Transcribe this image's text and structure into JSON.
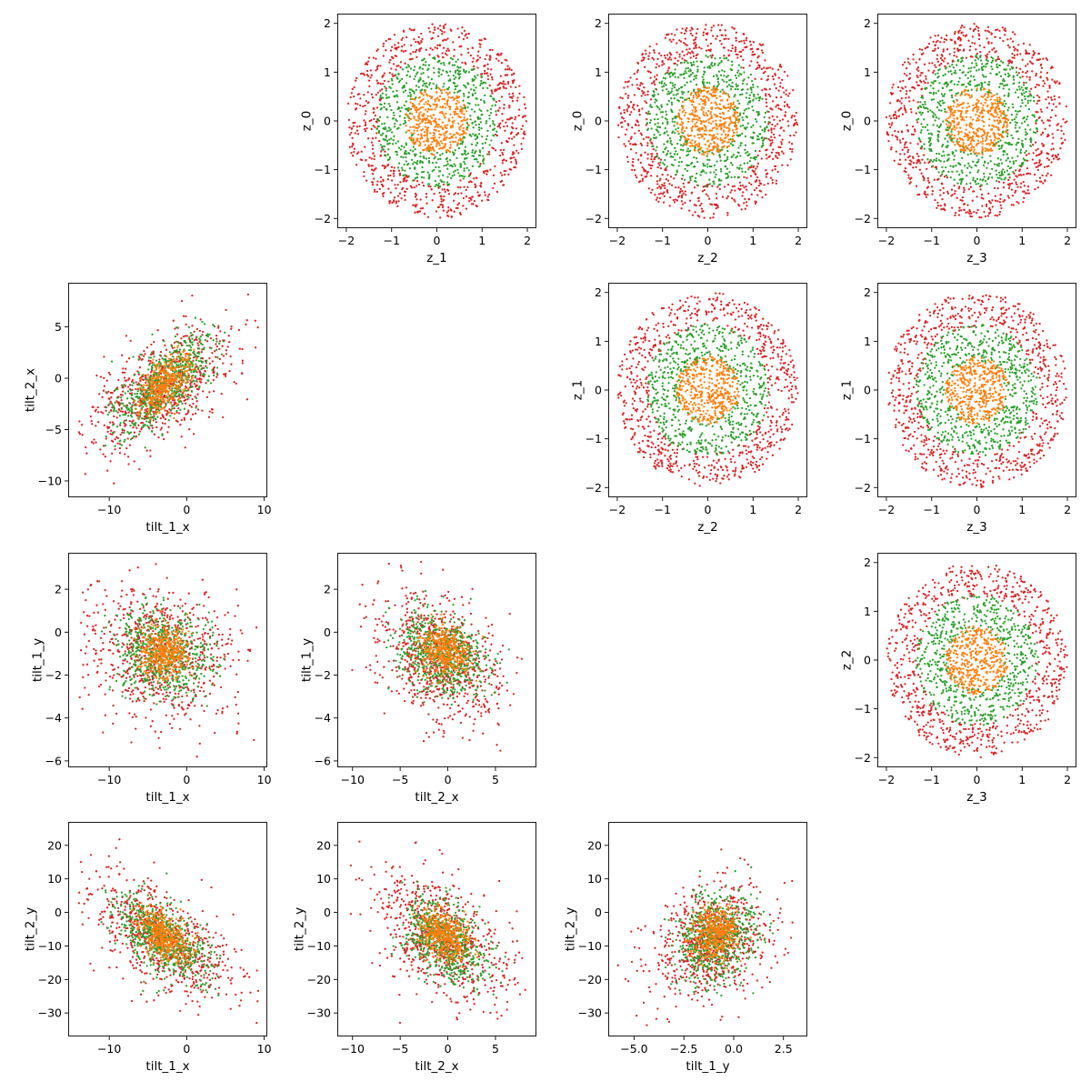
{
  "chart_data": {
    "type": "scatter",
    "layout": "lower and upper triangle scatter-plot matrix (4x4 grid, diagonal empty)",
    "series_colors": {
      "outer": "#d62728",
      "middle": "#2ca02c",
      "inner": "#ff7f0e"
    },
    "panels": [
      {
        "id": "z1-vs-z0",
        "row": 0,
        "col": 1,
        "xlabel": "z_1",
        "ylabel": "z_0",
        "xlim": [
          -2.2,
          2.2
        ],
        "ylim": [
          -2.2,
          2.2
        ],
        "xticks": [
          -2,
          -1,
          0,
          1,
          2
        ],
        "yticks": [
          -2,
          -1,
          0,
          1,
          2
        ],
        "xtick_labels": [
          "−2",
          "−1",
          "0",
          "1",
          "2"
        ],
        "ytick_labels": [
          "−2",
          "−1",
          "0",
          "1",
          "2"
        ],
        "distribution": "annulus",
        "rings": [
          {
            "series": "outer",
            "rmin": 1.3,
            "rmax": 2.0,
            "count": 750
          },
          {
            "series": "middle",
            "rmin": 0.6,
            "rmax": 1.35,
            "count": 620
          },
          {
            "series": "inner",
            "rmin": 0.0,
            "rmax": 0.7,
            "count": 420
          }
        ]
      },
      {
        "id": "z2-vs-z0",
        "row": 0,
        "col": 2,
        "xlabel": "z_2",
        "ylabel": "z_0",
        "xlim": [
          -2.2,
          2.2
        ],
        "ylim": [
          -2.2,
          2.2
        ],
        "xticks": [
          -2,
          -1,
          0,
          1,
          2
        ],
        "yticks": [
          -2,
          -1,
          0,
          1,
          2
        ],
        "xtick_labels": [
          "−2",
          "−1",
          "0",
          "1",
          "2"
        ],
        "ytick_labels": [
          "−2",
          "−1",
          "0",
          "1",
          "2"
        ],
        "distribution": "annulus",
        "rings": [
          {
            "series": "outer",
            "rmin": 1.3,
            "rmax": 2.0,
            "count": 750
          },
          {
            "series": "middle",
            "rmin": 0.6,
            "rmax": 1.35,
            "count": 620
          },
          {
            "series": "inner",
            "rmin": 0.0,
            "rmax": 0.7,
            "count": 420
          }
        ]
      },
      {
        "id": "z3-vs-z0",
        "row": 0,
        "col": 3,
        "xlabel": "z_3",
        "ylabel": "z_0",
        "xlim": [
          -2.2,
          2.2
        ],
        "ylim": [
          -2.2,
          2.2
        ],
        "xticks": [
          -2,
          -1,
          0,
          1,
          2
        ],
        "yticks": [
          -2,
          -1,
          0,
          1,
          2
        ],
        "xtick_labels": [
          "−2",
          "−1",
          "0",
          "1",
          "2"
        ],
        "ytick_labels": [
          "−2",
          "−1",
          "0",
          "1",
          "2"
        ],
        "distribution": "annulus",
        "rings": [
          {
            "series": "outer",
            "rmin": 1.3,
            "rmax": 2.0,
            "count": 750
          },
          {
            "series": "middle",
            "rmin": 0.6,
            "rmax": 1.35,
            "count": 620
          },
          {
            "series": "inner",
            "rmin": 0.0,
            "rmax": 0.7,
            "count": 420
          }
        ]
      },
      {
        "id": "tilt1x-vs-tilt2x",
        "row": 1,
        "col": 0,
        "xlabel": "tilt_1_x",
        "ylabel": "tilt_2_x",
        "xlim": [
          -15.3,
          10.4
        ],
        "ylim": [
          -11.6,
          9.3
        ],
        "xticks": [
          -10,
          0,
          10
        ],
        "yticks": [
          -10,
          -5,
          0,
          5
        ],
        "xtick_labels": [
          "−10",
          "0",
          "10"
        ],
        "ytick_labels": [
          "−10",
          "−5",
          "0",
          "5"
        ],
        "distribution": "gaussian",
        "clouds": [
          {
            "series": "outer",
            "mx": -3.5,
            "my": -1.0,
            "sx": 4.6,
            "sy": 3.2,
            "rho": 0.62,
            "count": 750,
            "xlim": [
              -14,
              9.5
            ],
            "ylim": [
              -10.5,
              8.5
            ]
          },
          {
            "series": "middle",
            "mx": -3.0,
            "my": -0.6,
            "sx": 3.2,
            "sy": 2.4,
            "rho": 0.65,
            "count": 620,
            "xlim": [
              -11,
              5
            ],
            "ylim": [
              -7,
              6.5
            ]
          },
          {
            "series": "inner",
            "mx": -2.8,
            "my": -0.5,
            "sx": 1.8,
            "sy": 1.5,
            "rho": 0.6,
            "count": 420,
            "xlim": [
              -7,
              1.5
            ],
            "ylim": [
              -4,
              4
            ]
          }
        ]
      },
      {
        "id": "z2-vs-z1",
        "row": 1,
        "col": 2,
        "xlabel": "z_2",
        "ylabel": "z_1",
        "xlim": [
          -2.2,
          2.2
        ],
        "ylim": [
          -2.2,
          2.2
        ],
        "xticks": [
          -2,
          -1,
          0,
          1,
          2
        ],
        "yticks": [
          -2,
          -1,
          0,
          1,
          2
        ],
        "xtick_labels": [
          "−2",
          "−1",
          "0",
          "1",
          "2"
        ],
        "ytick_labels": [
          "−2",
          "−1",
          "0",
          "1",
          "2"
        ],
        "distribution": "annulus",
        "rings": [
          {
            "series": "outer",
            "rmin": 1.3,
            "rmax": 2.0,
            "count": 750
          },
          {
            "series": "middle",
            "rmin": 0.6,
            "rmax": 1.35,
            "count": 620
          },
          {
            "series": "inner",
            "rmin": 0.0,
            "rmax": 0.7,
            "count": 420
          }
        ]
      },
      {
        "id": "z3-vs-z1",
        "row": 1,
        "col": 3,
        "xlabel": "z_3",
        "ylabel": "z_1",
        "xlim": [
          -2.2,
          2.2
        ],
        "ylim": [
          -2.2,
          2.2
        ],
        "xticks": [
          -2,
          -1,
          0,
          1,
          2
        ],
        "yticks": [
          -2,
          -1,
          0,
          1,
          2
        ],
        "xtick_labels": [
          "−2",
          "−1",
          "0",
          "1",
          "2"
        ],
        "ytick_labels": [
          "−2",
          "−1",
          "0",
          "1",
          "2"
        ],
        "distribution": "annulus",
        "rings": [
          {
            "series": "outer",
            "rmin": 1.3,
            "rmax": 2.0,
            "count": 750
          },
          {
            "series": "middle",
            "rmin": 0.6,
            "rmax": 1.35,
            "count": 620
          },
          {
            "series": "inner",
            "rmin": 0.0,
            "rmax": 0.7,
            "count": 420
          }
        ]
      },
      {
        "id": "tilt1x-vs-tilt1y",
        "row": 2,
        "col": 0,
        "xlabel": "tilt_1_x",
        "ylabel": "tilt_1_y",
        "xlim": [
          -15.3,
          10.4
        ],
        "ylim": [
          -6.3,
          3.7
        ],
        "xticks": [
          -10,
          0,
          10
        ],
        "yticks": [
          -6,
          -4,
          -2,
          0,
          2
        ],
        "xtick_labels": [
          "−10",
          "0",
          "10"
        ],
        "ytick_labels": [
          "−6",
          "−4",
          "−2",
          "0",
          "2"
        ],
        "distribution": "gaussian",
        "clouds": [
          {
            "series": "outer",
            "mx": -3.5,
            "my": -1.0,
            "sx": 5.0,
            "sy": 1.6,
            "rho": -0.15,
            "count": 750,
            "xlim": [
              -14,
              9.5
            ],
            "ylim": [
              -5.9,
              3.3
            ]
          },
          {
            "series": "middle",
            "mx": -3.2,
            "my": -1.0,
            "sx": 3.2,
            "sy": 1.0,
            "rho": -0.1,
            "count": 620,
            "xlim": [
              -11,
              5
            ],
            "ylim": [
              -3.5,
              2
            ]
          },
          {
            "series": "inner",
            "mx": -3.0,
            "my": -0.9,
            "sx": 1.7,
            "sy": 0.6,
            "rho": 0.0,
            "count": 420,
            "xlim": [
              -7,
              1.5
            ],
            "ylim": [
              -2.5,
              1
            ]
          }
        ]
      },
      {
        "id": "tilt2x-vs-tilt1y",
        "row": 2,
        "col": 1,
        "xlabel": "tilt_2_x",
        "ylabel": "tilt_1_y",
        "xlim": [
          -11.6,
          9.3
        ],
        "ylim": [
          -6.3,
          3.7
        ],
        "xticks": [
          -10,
          -5,
          0,
          5
        ],
        "yticks": [
          -6,
          -4,
          -2,
          0,
          2
        ],
        "xtick_labels": [
          "−10",
          "−5",
          "0",
          "5"
        ],
        "ytick_labels": [
          "−6",
          "−4",
          "−2",
          "0",
          "2"
        ],
        "distribution": "gaussian",
        "clouds": [
          {
            "series": "outer",
            "mx": -0.8,
            "my": -1.2,
            "sx": 3.4,
            "sy": 1.6,
            "rho": -0.35,
            "count": 750,
            "xlim": [
              -10.5,
              8.5
            ],
            "ylim": [
              -5.9,
              3.4
            ]
          },
          {
            "series": "middle",
            "mx": -0.6,
            "my": -1.0,
            "sx": 2.4,
            "sy": 1.0,
            "rho": -0.3,
            "count": 620,
            "xlim": [
              -7,
              6.5
            ],
            "ylim": [
              -3.5,
              2
            ]
          },
          {
            "series": "inner",
            "mx": -0.5,
            "my": -0.8,
            "sx": 1.4,
            "sy": 0.6,
            "rho": -0.2,
            "count": 420,
            "xlim": [
              -4,
              4
            ],
            "ylim": [
              -2.5,
              1
            ]
          }
        ]
      },
      {
        "id": "z3-vs-z2",
        "row": 2,
        "col": 3,
        "xlabel": "z_3",
        "ylabel": "z_2",
        "xlim": [
          -2.2,
          2.2
        ],
        "ylim": [
          -2.2,
          2.2
        ],
        "xticks": [
          -2,
          -1,
          0,
          1,
          2
        ],
        "yticks": [
          -2,
          -1,
          0,
          1,
          2
        ],
        "xtick_labels": [
          "−2",
          "−1",
          "0",
          "1",
          "2"
        ],
        "ytick_labels": [
          "−2",
          "−1",
          "0",
          "1",
          "2"
        ],
        "distribution": "annulus",
        "rings": [
          {
            "series": "outer",
            "rmin": 1.3,
            "rmax": 2.0,
            "count": 750
          },
          {
            "series": "middle",
            "rmin": 0.6,
            "rmax": 1.35,
            "count": 620
          },
          {
            "series": "inner",
            "rmin": 0.0,
            "rmax": 0.7,
            "count": 420
          }
        ]
      },
      {
        "id": "tilt1x-vs-tilt2y",
        "row": 3,
        "col": 0,
        "xlabel": "tilt_1_x",
        "ylabel": "tilt_2_y",
        "xlim": [
          -15.3,
          10.4
        ],
        "ylim": [
          -37,
          27
        ],
        "xticks": [
          -10,
          0,
          10
        ],
        "yticks": [
          -30,
          -20,
          -10,
          0,
          10,
          20
        ],
        "xtick_labels": [
          "−10",
          "0",
          "10"
        ],
        "ytick_labels": [
          "−30",
          "−20",
          "−10",
          "0",
          "10",
          "20"
        ],
        "distribution": "gaussian",
        "clouds": [
          {
            "series": "outer",
            "mx": -3.5,
            "my": -8.0,
            "sx": 5.0,
            "sy": 9.5,
            "rho": -0.6,
            "count": 750,
            "xlim": [
              -14,
              9.5
            ],
            "ylim": [
              -34,
              24
            ]
          },
          {
            "series": "middle",
            "mx": -3.2,
            "my": -8.0,
            "sx": 3.2,
            "sy": 6.5,
            "rho": -0.6,
            "count": 620,
            "xlim": [
              -11,
              5
            ],
            "ylim": [
              -25,
              14
            ]
          },
          {
            "series": "inner",
            "mx": -3.0,
            "my": -7.0,
            "sx": 1.7,
            "sy": 4.0,
            "rho": -0.5,
            "count": 420,
            "xlim": [
              -7,
              1.5
            ],
            "ylim": [
              -17,
              3
            ]
          }
        ]
      },
      {
        "id": "tilt2x-vs-tilt2y",
        "row": 3,
        "col": 1,
        "xlabel": "tilt_2_x",
        "ylabel": "tilt_2_y",
        "xlim": [
          -11.6,
          9.3
        ],
        "ylim": [
          -37,
          27
        ],
        "xticks": [
          -10,
          -5,
          0,
          5
        ],
        "yticks": [
          -30,
          -20,
          -10,
          0,
          10,
          20
        ],
        "xtick_labels": [
          "−10",
          "−5",
          "0",
          "5"
        ],
        "ytick_labels": [
          "−30",
          "−20",
          "−10",
          "0",
          "10",
          "20"
        ],
        "distribution": "gaussian",
        "clouds": [
          {
            "series": "outer",
            "mx": -0.5,
            "my": -8.0,
            "sx": 3.4,
            "sy": 9.5,
            "rho": -0.45,
            "count": 750,
            "xlim": [
              -10.5,
              8.5
            ],
            "ylim": [
              -34,
              24
            ]
          },
          {
            "series": "middle",
            "mx": -0.4,
            "my": -8.0,
            "sx": 2.3,
            "sy": 6.5,
            "rho": -0.45,
            "count": 620,
            "xlim": [
              -7,
              6.5
            ],
            "ylim": [
              -25,
              14
            ]
          },
          {
            "series": "inner",
            "mx": -0.3,
            "my": -7.0,
            "sx": 1.4,
            "sy": 4.0,
            "rho": -0.4,
            "count": 420,
            "xlim": [
              -4,
              4
            ],
            "ylim": [
              -17,
              3
            ]
          }
        ]
      },
      {
        "id": "tilt1y-vs-tilt2y",
        "row": 3,
        "col": 2,
        "xlabel": "tilt_1_y",
        "ylabel": "tilt_2_y",
        "xlim": [
          -6.3,
          3.7
        ],
        "ylim": [
          -37,
          27
        ],
        "xticks": [
          -5,
          -2.5,
          0,
          2.5
        ],
        "yticks": [
          -30,
          -20,
          -10,
          0,
          10,
          20
        ],
        "xtick_labels": [
          "−5.0",
          "−2.5",
          "0.0",
          "2.5"
        ],
        "ytick_labels": [
          "−30",
          "−20",
          "−10",
          "0",
          "10",
          "20"
        ],
        "distribution": "gaussian",
        "clouds": [
          {
            "series": "outer",
            "mx": -1.2,
            "my": -9.0,
            "sx": 1.5,
            "sy": 8.5,
            "rho": 0.25,
            "count": 750,
            "xlim": [
              -5.9,
              3.3
            ],
            "ylim": [
              -34,
              24
            ]
          },
          {
            "series": "middle",
            "mx": -1.0,
            "my": -8.0,
            "sx": 1.0,
            "sy": 6.5,
            "rho": 0.2,
            "count": 620,
            "xlim": [
              -3.5,
              2
            ],
            "ylim": [
              -25,
              14
            ]
          },
          {
            "series": "inner",
            "mx": -0.9,
            "my": -6.0,
            "sx": 0.6,
            "sy": 4.0,
            "rho": 0.1,
            "count": 420,
            "xlim": [
              -2.5,
              1
            ],
            "ylim": [
              -17,
              3
            ]
          }
        ]
      }
    ]
  }
}
